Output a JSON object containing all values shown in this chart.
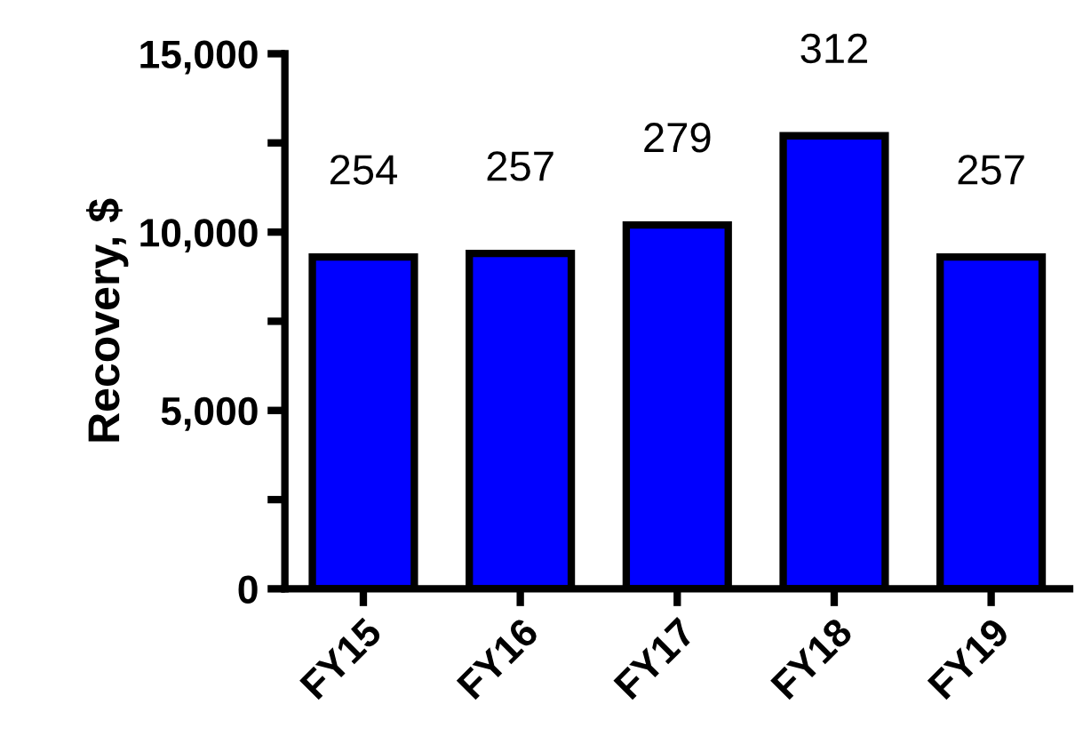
{
  "chart_data": {
    "type": "bar",
    "ylabel": "Recovery, $",
    "categories": [
      "FY15",
      "FY16",
      "FY17",
      "FY18",
      "FY19"
    ],
    "values": [
      9300,
      9400,
      10200,
      12700,
      9300
    ],
    "annotations": [
      {
        "text": "254",
        "x": "FY15",
        "y": 9300
      },
      {
        "text": "257",
        "x": "FY16",
        "y": 9400
      },
      {
        "text": "279",
        "x": "FY17",
        "y": 10200
      },
      {
        "text": "312",
        "x": "FY18",
        "y": 12700
      },
      {
        "text": "257",
        "x": "FY19",
        "y": 9300
      }
    ],
    "color": "#0000ff",
    "ylim": [
      0,
      15000
    ],
    "yticks": [
      0,
      {
        "value": 2500,
        "label": null
      },
      {
        "value": 5000,
        "label": "5,000"
      },
      {
        "value": 7500,
        "label": null
      },
      {
        "value": 10000,
        "label": "10,000"
      },
      {
        "value": 12500,
        "label": null
      },
      {
        "value": 15000,
        "label": "15,000"
      }
    ],
    "grid": false,
    "legend": false
  }
}
